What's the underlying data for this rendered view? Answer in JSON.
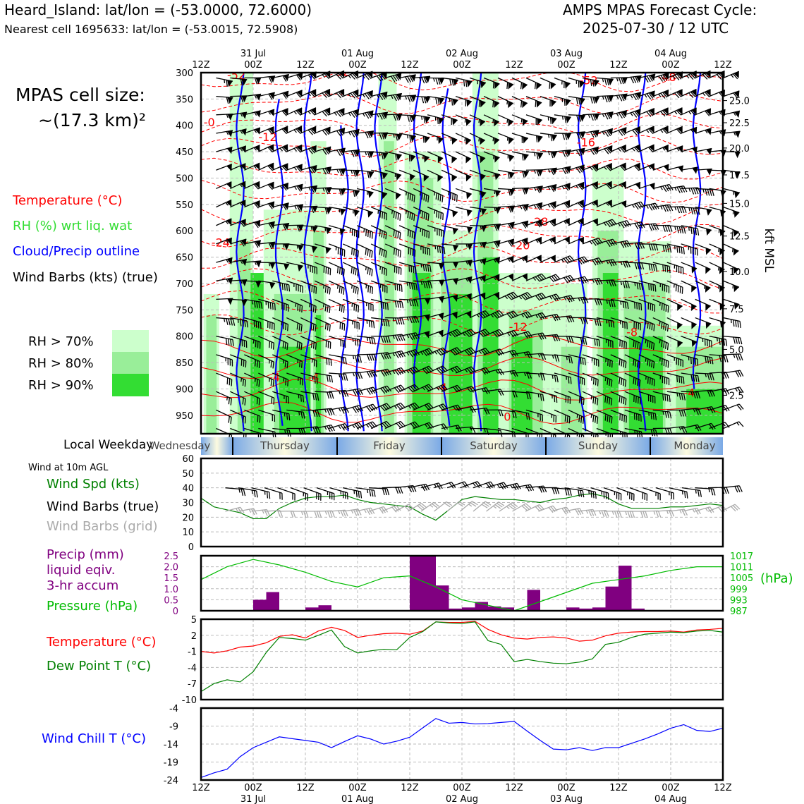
{
  "header": {
    "left_title": "Heard_Island: lat/lon = (-53.0000, 72.6000)",
    "left_subtitle": "Nearest cell 1695633: lat/lon = (-53.0015, 72.5908)",
    "right_title": "AMPS MPAS Forecast Cycle:",
    "right_subtitle": "2025-07-30 / 12 UTC"
  },
  "cell_size": {
    "line1": "MPAS cell size:",
    "line2": "~(17.3 km)²"
  },
  "legend": {
    "temperature": "Temperature (°C)",
    "rh": "RH (%) wrt liq. wat",
    "cloud": "Cloud/Precip outline",
    "barbs": "Wind Barbs (kts) (true)",
    "rh_levels": [
      {
        "label": "RH > 70%",
        "color": "#ccffcc"
      },
      {
        "label": "RH > 80%",
        "color": "#99ee99"
      },
      {
        "label": "RH > 90%",
        "color": "#33dd33"
      }
    ]
  },
  "time_axis": {
    "ticks": [
      "12Z",
      "00Z",
      "12Z",
      "00Z",
      "12Z",
      "00Z",
      "12Z",
      "00Z",
      "12Z",
      "00Z",
      "12Z"
    ],
    "dates": [
      {
        "label": "31 Jul",
        "tick": 1
      },
      {
        "label": "01 Aug",
        "tick": 3
      },
      {
        "label": "02 Aug",
        "tick": 5
      },
      {
        "label": "03 Aug",
        "tick": 7
      },
      {
        "label": "04 Aug",
        "tick": 9
      }
    ]
  },
  "weekday": {
    "label": "Local Weekday",
    "days": [
      "Wednesday",
      "Thursday",
      "Friday",
      "Saturday",
      "Sunday",
      "Monday"
    ]
  },
  "colors": {
    "temp": "#ff0000",
    "rh": "#33dd33",
    "cloud": "#0000ff",
    "barb": "#000000",
    "grid_barb": "#aaaaaa",
    "precip": "#800080",
    "pressure": "#00bb00",
    "dewpoint": "#008000",
    "windchill": "#0000ff"
  },
  "chart_data": [
    {
      "type": "heatmap",
      "name": "cross-section",
      "y_label_right": "kft MSL",
      "pressure_ticks": [
        300,
        350,
        400,
        450,
        500,
        550,
        600,
        650,
        700,
        750,
        800,
        850,
        900,
        950
      ],
      "kft_ticks": [
        "25.0",
        "22.5",
        "20.0",
        "17.5",
        "15.0",
        "12.5",
        "10.0",
        "7.5",
        "5.0",
        "2.5"
      ],
      "kft_pressure": [
        353,
        395,
        443,
        494,
        548,
        610,
        677,
        748,
        825,
        912
      ],
      "temp_labels": [
        {
          "t": "-52",
          "x": 0.5,
          "p": 312
        },
        {
          "t": "-52",
          "x": 2.5,
          "p": 306
        },
        {
          "t": "-52",
          "x": 7.25,
          "p": 322
        },
        {
          "t": "-48",
          "x": 8.75,
          "p": 316
        },
        {
          "t": "-16",
          "x": 7.2,
          "p": 440
        },
        {
          "t": "-12",
          "x": 1.1,
          "p": 430
        },
        {
          "t": "-0",
          "x": 0.05,
          "p": 402
        },
        {
          "t": "-28",
          "x": 6.3,
          "p": 590
        },
        {
          "t": "-20",
          "x": 5.95,
          "p": 635
        },
        {
          "t": "-24",
          "x": 0.2,
          "p": 630
        },
        {
          "t": "-12",
          "x": 5.9,
          "p": 790
        },
        {
          "t": "-8",
          "x": 8.15,
          "p": 800
        },
        {
          "t": "-0",
          "x": 9.9,
          "p": 745
        },
        {
          "t": "-4",
          "x": 1.3,
          "p": 885
        },
        {
          "t": "-4",
          "x": 2.05,
          "p": 885
        },
        {
          "t": "-4",
          "x": 4.5,
          "p": 905
        },
        {
          "t": "-4",
          "x": 9.25,
          "p": 915
        },
        {
          "t": "0",
          "x": 5.8,
          "p": 960
        }
      ]
    },
    {
      "type": "line",
      "name": "wind-10m",
      "header": "Wind at 10m AGL",
      "legend": [
        "Wind Spd (kts)",
        "Wind Barbs (true)",
        "Wind Barbs (grid)"
      ],
      "ylim": [
        0,
        60
      ],
      "yticks": [
        0,
        10,
        20,
        30,
        40,
        50,
        60
      ],
      "x": [
        0,
        0.25,
        0.5,
        0.75,
        1,
        1.25,
        1.5,
        1.75,
        2,
        2.25,
        2.5,
        2.75,
        3,
        3.25,
        3.5,
        3.75,
        4,
        4.25,
        4.5,
        4.75,
        5,
        5.25,
        5.5,
        5.75,
        6,
        6.25,
        6.5,
        6.75,
        7,
        7.25,
        7.5,
        7.75,
        8,
        8.25,
        8.5,
        8.75,
        9,
        9.25,
        9.5,
        9.75,
        10
      ],
      "speed": [
        33,
        27,
        25,
        23,
        19,
        19,
        26,
        30,
        33,
        34,
        34,
        35,
        32,
        30,
        29,
        28,
        27,
        22,
        18,
        25,
        32,
        34,
        33,
        32,
        32,
        31,
        30,
        32,
        33,
        35,
        36,
        34,
        29,
        26,
        26,
        26,
        27,
        27,
        28,
        29,
        28
      ]
    },
    {
      "type": "bar",
      "name": "precip-pressure",
      "legend": [
        "Precip (mm)",
        "liquid eqiv.",
        "3-hr accum",
        "Pressure (hPa)"
      ],
      "ylim": [
        0,
        2.5
      ],
      "yticks": [
        "0",
        "0.5",
        "1.0",
        "1.5",
        "2.0",
        "2.5"
      ],
      "right_ticks": [
        "987",
        "993",
        "999",
        "1005",
        "1011",
        "1017"
      ],
      "right_label": "(hPa)",
      "precip_x": [
        0.25,
        0.5,
        1,
        1.25,
        2,
        2.25,
        4,
        4.25,
        4.5,
        4.75,
        5,
        5.25,
        5.5,
        5.75,
        6,
        6.25,
        6.5,
        7,
        7.25,
        7.5,
        7.75,
        8,
        8.25,
        8.5
      ],
      "precip": [
        0.03,
        0.03,
        0.5,
        0.85,
        0.15,
        0.25,
        2.5,
        2.5,
        1.15,
        0.1,
        0.15,
        0.4,
        0.2,
        0.15,
        0,
        0.95,
        0,
        0.15,
        0.1,
        0.15,
        1.1,
        2.05,
        0.1,
        0
      ],
      "pressure_x": [
        0,
        0.5,
        1,
        1.5,
        2,
        2.5,
        3,
        3.5,
        4,
        4.5,
        5,
        5.5,
        6,
        6.5,
        7,
        7.5,
        8,
        8.5,
        9,
        9.5,
        10
      ],
      "pressure": [
        1004,
        1011,
        1015,
        1012,
        1008,
        1003,
        1000,
        1005,
        1006,
        1000,
        993,
        990,
        987,
        992,
        997,
        1002,
        1004,
        1006,
        1009,
        1011,
        1011
      ]
    },
    {
      "type": "line",
      "name": "temp-dewpoint",
      "legend": [
        "Temperature (°C)",
        "Dew Point T (°C)"
      ],
      "ylim": [
        -10,
        5
      ],
      "yticks": [
        "-10",
        "-7",
        "-4",
        "-1",
        "2",
        "5"
      ],
      "x": [
        0,
        0.25,
        0.5,
        0.75,
        1,
        1.25,
        1.5,
        1.75,
        2,
        2.25,
        2.5,
        2.75,
        3,
        3.25,
        3.5,
        3.75,
        4,
        4.25,
        4.5,
        4.75,
        5,
        5.25,
        5.5,
        5.75,
        6,
        6.25,
        6.5,
        6.75,
        7,
        7.25,
        7.5,
        7.75,
        8,
        8.25,
        8.5,
        8.75,
        9,
        9.25,
        9.5,
        9.75,
        10
      ],
      "temp": [
        -1,
        -1.3,
        -0.9,
        -0.2,
        0,
        0.6,
        1.8,
        2.1,
        1.5,
        2.8,
        3.5,
        2.9,
        1.6,
        2,
        2.3,
        2.4,
        2.2,
        2.8,
        4.5,
        4.4,
        4.4,
        4.6,
        3.1,
        2.1,
        1.5,
        1.3,
        1.6,
        1.7,
        1.5,
        0.9,
        1.1,
        1.9,
        2.4,
        2.6,
        2.7,
        2.7,
        2.8,
        2.6,
        3.0,
        3.1,
        3.3
      ],
      "dew": [
        -8.5,
        -7,
        -6.3,
        -6.7,
        -4.8,
        -1.2,
        1.6,
        1.4,
        1.1,
        2,
        3,
        -0.1,
        -1.3,
        -0.9,
        -0.6,
        -0.7,
        1.6,
        2.7,
        4.5,
        4.3,
        4.2,
        4.5,
        1,
        0.3,
        -2.9,
        -2.5,
        -2.9,
        -3.2,
        -3.3,
        -3,
        -2.4,
        0.3,
        0.7,
        1.6,
        2.2,
        2.4,
        2.6,
        2.5,
        2.8,
        2.9,
        2.6
      ]
    },
    {
      "type": "line",
      "name": "wind-chill",
      "legend": [
        "Wind Chill T (°C)"
      ],
      "ylim": [
        -24,
        -4
      ],
      "yticks": [
        "-24",
        "-19",
        "-14",
        "-9",
        "-4"
      ],
      "x": [
        0,
        0.25,
        0.5,
        0.75,
        1,
        1.25,
        1.5,
        1.75,
        2,
        2.25,
        2.5,
        2.75,
        3,
        3.25,
        3.5,
        3.75,
        4,
        4.25,
        4.5,
        4.75,
        5,
        5.25,
        5.5,
        5.75,
        6,
        6.25,
        6.5,
        6.75,
        7,
        7.25,
        7.5,
        7.75,
        8,
        8.25,
        8.5,
        8.75,
        9,
        9.25,
        9.5,
        9.75,
        10
      ],
      "values": [
        -23.3,
        -22,
        -21,
        -17.5,
        -15,
        -13.5,
        -12,
        -12.5,
        -13,
        -13.5,
        -15,
        -13.3,
        -11.7,
        -12.6,
        -14,
        -13.2,
        -12.1,
        -9.5,
        -6.9,
        -8.2,
        -8,
        -8.4,
        -8.3,
        -8,
        -7.7,
        -10.4,
        -13,
        -15.4,
        -15.6,
        -15,
        -15.8,
        -15,
        -15,
        -13.8,
        -12.6,
        -11.2,
        -9.6,
        -8.6,
        -10.2,
        -10.5,
        -9.6
      ]
    }
  ]
}
